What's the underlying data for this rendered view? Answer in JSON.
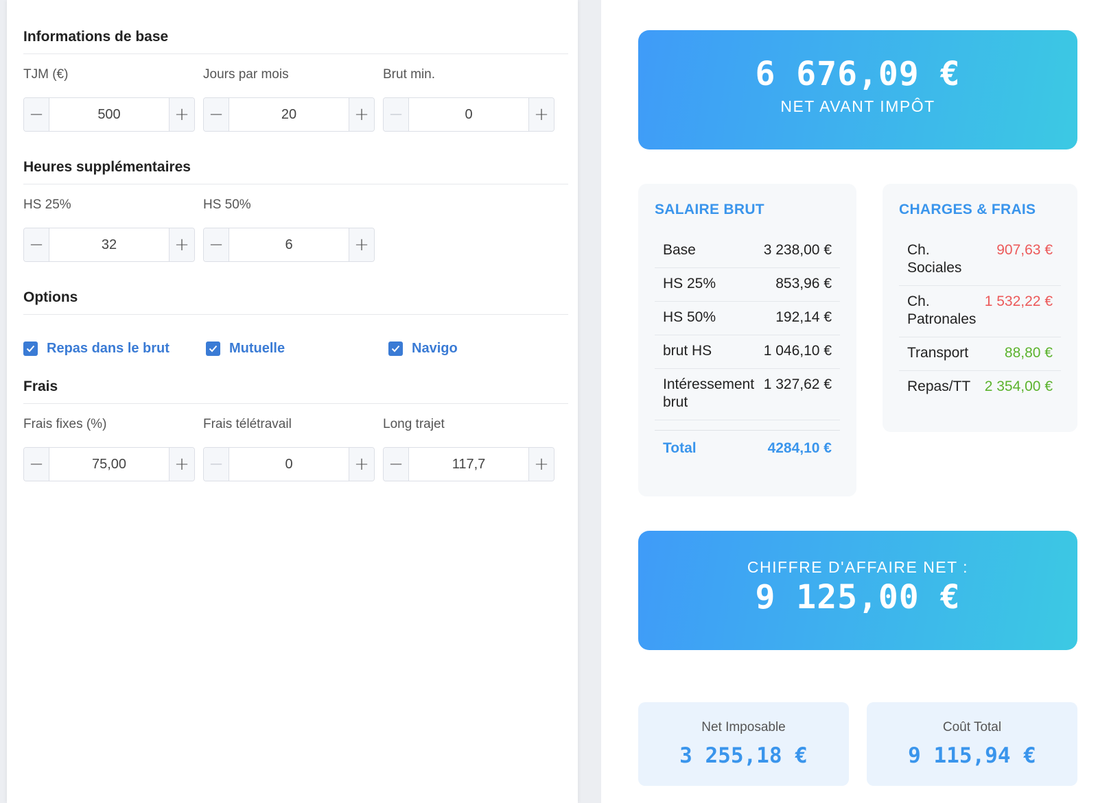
{
  "form": {
    "base": {
      "title": "Informations de base",
      "fields": [
        {
          "label": "TJM (€)",
          "value": "500",
          "minus": "−",
          "plus": "+"
        },
        {
          "label": "Jours par mois",
          "value": "20",
          "minus": "−",
          "plus": "+"
        },
        {
          "label": "Brut min.",
          "value": "0",
          "minus": "−",
          "plus": "+"
        }
      ]
    },
    "overtime": {
      "title": "Heures supplémentaires",
      "fields": [
        {
          "label": "HS 25%",
          "value": "32",
          "minus": "−",
          "plus": "+"
        },
        {
          "label": "HS 50%",
          "value": "6",
          "minus": "−",
          "plus": "+"
        }
      ]
    },
    "options": {
      "title": "Options",
      "items": [
        {
          "label": "Repas dans le brut",
          "checked": true
        },
        {
          "label": "Mutuelle",
          "checked": true
        },
        {
          "label": "Navigo",
          "checked": true
        }
      ]
    },
    "frais": {
      "title": "Frais",
      "fields": [
        {
          "label": "Frais fixes (%)",
          "value": "75,00",
          "minus": "−",
          "plus": "+"
        },
        {
          "label": "Frais télétravail",
          "value": "0",
          "minus": "−",
          "plus": "+"
        },
        {
          "label": "Long trajet",
          "value": "117,7",
          "minus": "−",
          "plus": "+"
        }
      ]
    }
  },
  "results": {
    "net_avant_impot": {
      "amount": "6 676,09 €",
      "label": "NET AVANT IMPÔT"
    },
    "salaire_brut": {
      "title": "SALAIRE BRUT",
      "rows": [
        {
          "label": "Base",
          "value": "3 238,00 €"
        },
        {
          "label": "HS 25%",
          "value": "853,96 €"
        },
        {
          "label": "HS 50%",
          "value": "192,14 €"
        },
        {
          "label": "brut HS",
          "value": "1 046,10 €"
        },
        {
          "label": "Intéressement brut",
          "value": "1 327,62 €"
        }
      ],
      "total": {
        "label": "Total",
        "value": "4284,10 €"
      }
    },
    "charges": {
      "title": "CHARGES & FRAIS",
      "rows": [
        {
          "label": "Ch. Sociales",
          "value": "907,63 €"
        },
        {
          "label": "Ch. Patronales",
          "value": "1 532,22 €"
        },
        {
          "label": "Transport",
          "value": "88,80 €"
        },
        {
          "label": "Repas/TT",
          "value": "2 354,00 €"
        }
      ]
    },
    "chiffre_affaire": {
      "label": "CHIFFRE D'AFFAIRE NET :",
      "amount": "9 125,00 €"
    },
    "net_imposable": {
      "label": "Net Imposable",
      "value": "3 255,18 €"
    },
    "cout_total": {
      "label": "Coût Total",
      "value": "9 115,94 €"
    }
  },
  "colors": {
    "accent": "#3a95ec",
    "checkbox": "#3a7bd5",
    "negative": "#ec5a5a",
    "positive": "#5cb32e"
  }
}
